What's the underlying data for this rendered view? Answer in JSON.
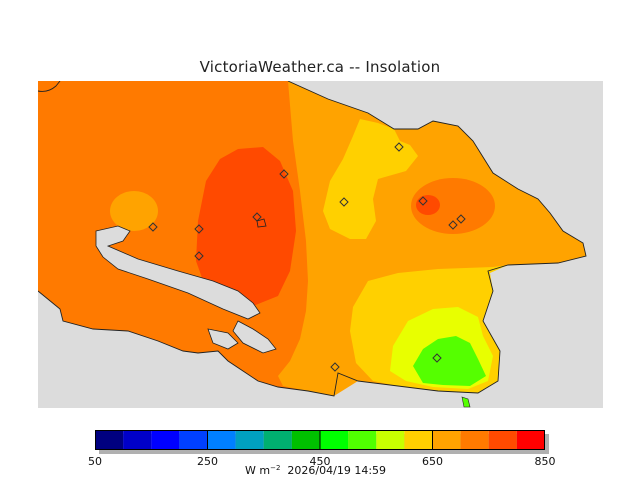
{
  "title": "VictoriaWeather.ca -- Insolation",
  "map": {
    "background_color": "#dcdcdc",
    "contour_levels": [
      {
        "value": 600,
        "color": "#ffd000"
      },
      {
        "value": 650,
        "color": "#ffa300"
      },
      {
        "value": 700,
        "color": "#ff7a00"
      },
      {
        "value": 750,
        "color": "#ff4a00"
      },
      {
        "value": 600,
        "color": "#e8ff00"
      },
      {
        "value": 500,
        "color": "#55ff00"
      }
    ],
    "station_marker": "diamond-icon"
  },
  "color_scale": {
    "colors": [
      "#000080",
      "#0000c8",
      "#0000ff",
      "#0040ff",
      "#0080ff",
      "#00a0c0",
      "#00b070",
      "#00c000",
      "#00ff00",
      "#50ff00",
      "#c8ff00",
      "#ffd000",
      "#ffa300",
      "#ff7a00",
      "#ff4a00",
      "#ff0000"
    ],
    "min": 50,
    "max": 850,
    "tick_labels": [
      "50",
      "250",
      "450",
      "650",
      "850"
    ]
  },
  "units": {
    "unit_base": "W m",
    "unit_exp": "−2",
    "timestamp": "2026/04/19 14:59"
  }
}
